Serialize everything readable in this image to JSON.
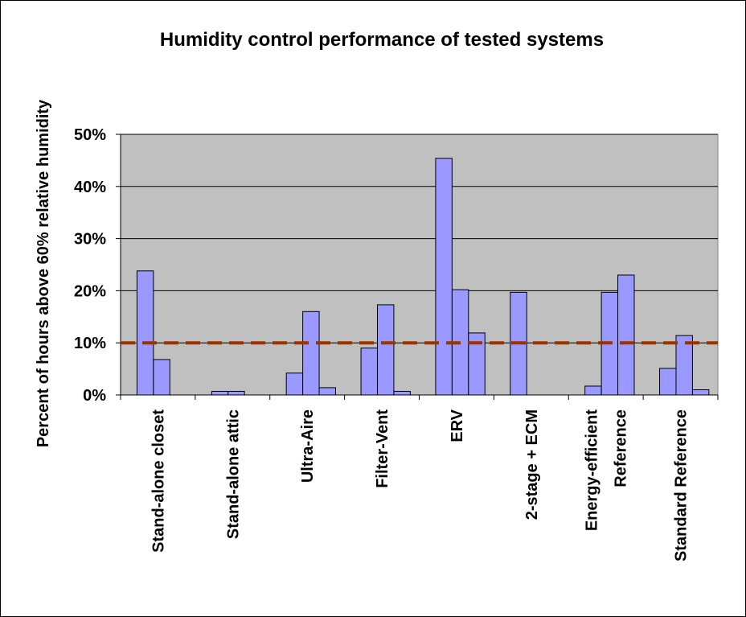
{
  "chart_data": {
    "type": "bar",
    "title": "Humidity control performance of tested systems",
    "y_label": "Percent of hours above 60% relative humidity",
    "categories": [
      "Stand-alone closet",
      "Stand-alone attic",
      "Ultra-Aire",
      "Filter-Vent",
      "ERV",
      "2-stage + ECM",
      "Energy-efficient\nReference",
      "Standard Reference"
    ],
    "series": [
      {
        "color": "#9999ff",
        "values": [
          23.8,
          0.7,
          4.2,
          9.0,
          45.4,
          19.7,
          1.7,
          5.1
        ]
      },
      {
        "color": "#9999ff",
        "values": [
          6.8,
          0.7,
          16.0,
          17.3,
          20.2,
          null,
          19.7,
          11.4
        ]
      },
      {
        "color": "#9999ff",
        "values": [
          null,
          null,
          1.4,
          0.7,
          11.9,
          null,
          23.0,
          1.0
        ]
      }
    ],
    "ylim": [
      0,
      50
    ],
    "yticks": [
      {
        "value": 0,
        "label": "0%"
      },
      {
        "value": 10,
        "label": "10%"
      },
      {
        "value": 20,
        "label": "20%"
      },
      {
        "value": 30,
        "label": "30%"
      },
      {
        "value": 40,
        "label": "40%"
      },
      {
        "value": 50,
        "label": "50%"
      }
    ],
    "grid": true,
    "reference_line": {
      "value": 10,
      "color": "#993300"
    },
    "plot_background": "#c0c0c0"
  }
}
